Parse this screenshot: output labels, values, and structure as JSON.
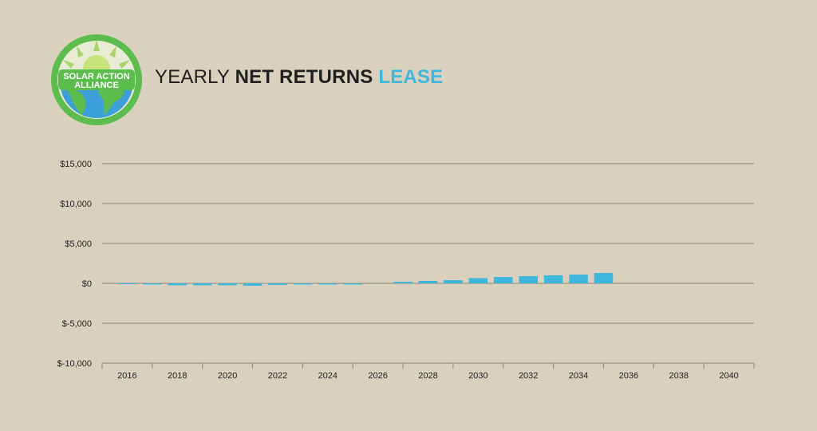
{
  "logo": {
    "line1": "SOLAR ACTION",
    "line2": "ALLIANCE"
  },
  "title": {
    "part1": "YEARLY",
    "part2": "NET RETURNS",
    "part3": "LEASE"
  },
  "colors": {
    "bar": "#3fb6dc",
    "grid": "#8f8877",
    "background": "#d9d1bd",
    "logo_green": "#5cbc4e",
    "logo_blue": "#3d9fd8"
  },
  "chart_data": {
    "type": "bar",
    "title": "YEARLY NET RETURNS LEASE",
    "xlabel": "",
    "ylabel": "",
    "ylim": [
      -10000,
      15000
    ],
    "xlim": [
      2015,
      2041
    ],
    "yticks": [
      15000,
      10000,
      5000,
      0,
      -5000,
      -10000
    ],
    "ytick_labels": [
      "$15,000",
      "$10,000",
      "$5,000",
      "$0",
      "$-5,000",
      "$-10,000"
    ],
    "xticks": [
      2016,
      2018,
      2020,
      2022,
      2024,
      2026,
      2028,
      2030,
      2032,
      2034,
      2036,
      2038,
      2040
    ],
    "xtick_labels": [
      "2016",
      "2018",
      "2020",
      "2022",
      "2024",
      "2026",
      "2028",
      "2030",
      "2032",
      "2034",
      "2036",
      "2038",
      "2040"
    ],
    "grid": true,
    "years": [
      2016,
      2017,
      2018,
      2019,
      2020,
      2021,
      2022,
      2023,
      2024,
      2025,
      2026,
      2027,
      2028,
      2029,
      2030,
      2031,
      2032,
      2033,
      2034,
      2035,
      2036,
      2037,
      2038,
      2039,
      2040
    ],
    "values": [
      -100,
      -150,
      -250,
      -250,
      -250,
      -300,
      -200,
      -150,
      -150,
      -150,
      0,
      200,
      300,
      400,
      650,
      800,
      900,
      1000,
      1100,
      1300,
      0,
      0,
      0,
      0,
      0
    ]
  }
}
